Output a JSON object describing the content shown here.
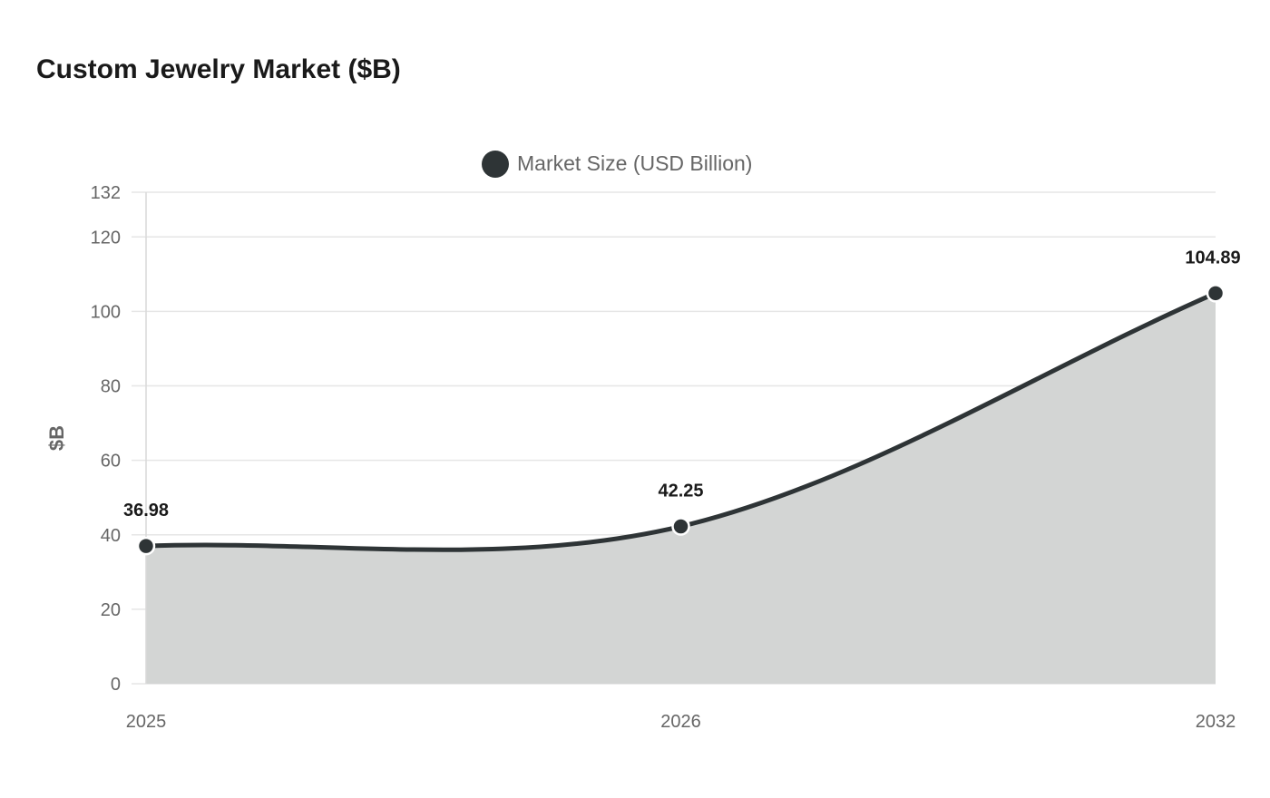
{
  "title": "Custom Jewelry Market ($B)",
  "chart_data": {
    "type": "area",
    "title": "Custom Jewelry Market ($B)",
    "categories": [
      "2025",
      "2026",
      "2032"
    ],
    "series": [
      {
        "name": "Market Size (USD Billion)",
        "values": [
          36.98,
          42.25,
          104.89
        ],
        "color": "#2e3436",
        "fill": "#d3d5d4"
      }
    ],
    "xlabel": "",
    "ylabel": "$B",
    "ylim": [
      0,
      132
    ],
    "yticks": [
      0,
      20,
      40,
      60,
      80,
      100,
      120,
      132
    ],
    "grid": true,
    "legend": "top-center"
  }
}
